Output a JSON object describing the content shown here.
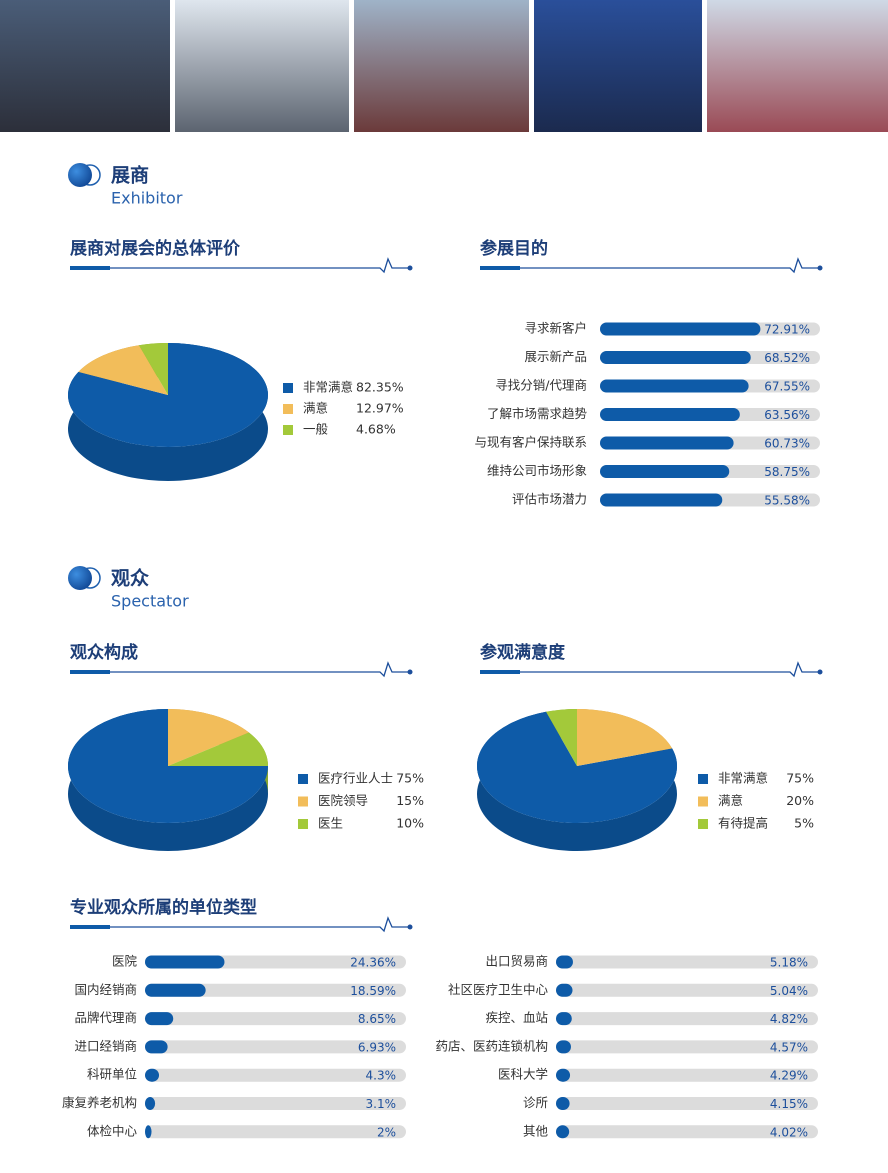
{
  "sections": [
    {
      "title": "展商",
      "subtitle": "Exhibitor"
    },
    {
      "title": "观众",
      "subtitle": "Spectator"
    }
  ],
  "chart_data": [
    {
      "type": "pie",
      "title": "展商对展会的总体评价",
      "categories": [
        "非常满意",
        "满意",
        "一般"
      ],
      "values": [
        82.35,
        12.97,
        4.68
      ],
      "value_labels": [
        "82.35%",
        "12.97%",
        "4.68%"
      ],
      "colors": [
        "#0e5ba8",
        "#f2bd5a",
        "#a3c93a"
      ]
    },
    {
      "type": "bar",
      "title": "参展目的",
      "categories": [
        "寻求新客户",
        "展示新产品",
        "寻找分销/代理商",
        "了解市场需求趋势",
        "与现有客户保持联系",
        "维持公司市场形象",
        "评估市场潜力"
      ],
      "values": [
        72.91,
        68.52,
        67.55,
        63.56,
        60.73,
        58.75,
        55.58
      ],
      "value_labels": [
        "72.91%",
        "68.52%",
        "67.55%",
        "63.56%",
        "60.73%",
        "58.75%",
        "55.58%"
      ],
      "color": "#0e5ba8",
      "xlim": [
        0,
        100
      ]
    },
    {
      "type": "pie",
      "title": "观众构成",
      "categories": [
        "医疗行业人士",
        "医院领导",
        "医生"
      ],
      "values": [
        75,
        15,
        10
      ],
      "value_labels": [
        "75%",
        "15%",
        "10%"
      ],
      "colors": [
        "#0e5ba8",
        "#f2bd5a",
        "#a3c93a"
      ]
    },
    {
      "type": "pie",
      "title": "参观满意度",
      "categories": [
        "非常满意",
        "满意",
        "有待提高"
      ],
      "values": [
        75,
        20,
        5
      ],
      "value_labels": [
        "75%",
        "20%",
        "5%"
      ],
      "colors": [
        "#0e5ba8",
        "#f2bd5a",
        "#a3c93a"
      ]
    },
    {
      "type": "bar",
      "title": "专业观众所属的单位类型",
      "categories": [
        "医院",
        "国内经销商",
        "品牌代理商",
        "进口经销商",
        "科研单位",
        "康复养老机构",
        "体检中心",
        "出口贸易商",
        "社区医疗卫生中心",
        "疾控、血站",
        "药店、医药连锁机构",
        "医科大学",
        "诊所",
        "其他"
      ],
      "values": [
        24.36,
        18.59,
        8.65,
        6.93,
        4.3,
        3.1,
        2,
        5.18,
        5.04,
        4.82,
        4.57,
        4.29,
        4.15,
        4.02
      ],
      "value_labels": [
        "24.36%",
        "18.59%",
        "8.65%",
        "6.93%",
        "4.3%",
        "3.1%",
        "2%",
        "5.18%",
        "5.04%",
        "4.82%",
        "4.57%",
        "4.29%",
        "4.15%",
        "4.02%"
      ],
      "color": "#0e5ba8",
      "xlim": [
        0,
        80
      ]
    }
  ]
}
